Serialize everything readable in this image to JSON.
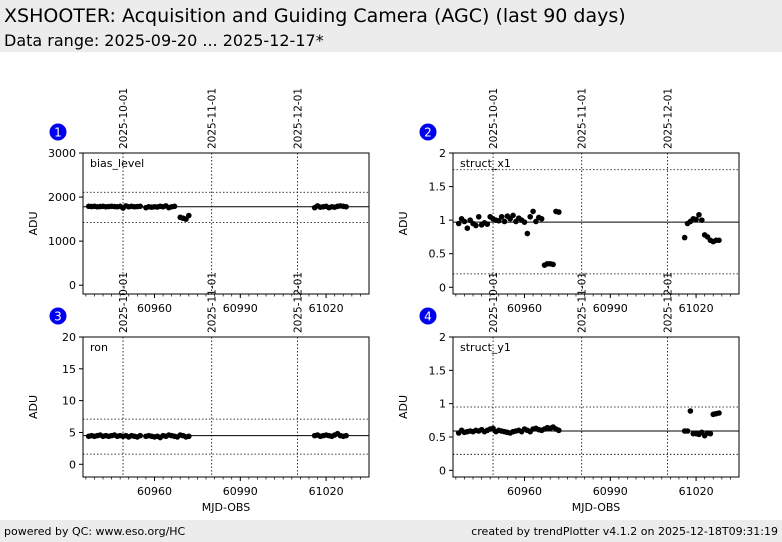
{
  "header": {
    "title": "XSHOOTER: Acquisition and Guiding Camera (AGC) (last 90 days)",
    "subtitle": "Data range: 2025-09-20 ... 2025-12-17*"
  },
  "footer": {
    "left": "powered by QC: www.eso.org/HC",
    "right": "created by trendPlotter v4.1.2 on 2025-12-18T09:31:19"
  },
  "chart_data": [
    {
      "type": "scatter",
      "panel_number": "1",
      "label": "bias_level",
      "ylabel": "ADU",
      "xlabel": "",
      "xlim": [
        60935,
        61035
      ],
      "ylim": [
        -200,
        3000
      ],
      "yticks": [
        0,
        1000,
        2000,
        3000
      ],
      "xticks": [
        60960,
        60990,
        61020
      ],
      "date_ticks": [
        {
          "label": "2025-10-01",
          "x": 60949
        },
        {
          "label": "2025-11-01",
          "x": 60980
        },
        {
          "label": "2025-12-01",
          "x": 61010
        }
      ],
      "reference_line": 1780,
      "limit_lines": [
        2110,
        1420
      ],
      "x": [
        60937,
        60938,
        60939,
        60940,
        60941,
        60942,
        60943,
        60944,
        60945,
        60946,
        60947,
        60948,
        60949,
        60950,
        60951,
        60952,
        60953,
        60954,
        60955,
        60957,
        60958,
        60959,
        60960,
        60961,
        60962,
        60963,
        60964,
        60965,
        60966,
        60967,
        60969,
        60970,
        60971,
        60972,
        61016,
        61017,
        61018,
        61019,
        61020,
        61021,
        61022,
        61023,
        61024,
        61025,
        61026,
        61027
      ],
      "y": [
        1790,
        1785,
        1790,
        1780,
        1785,
        1790,
        1780,
        1785,
        1790,
        1785,
        1780,
        1790,
        1750,
        1800,
        1780,
        1790,
        1780,
        1785,
        1790,
        1760,
        1780,
        1770,
        1780,
        1775,
        1790,
        1780,
        1800,
        1760,
        1780,
        1790,
        1540,
        1520,
        1500,
        1580,
        1760,
        1800,
        1770,
        1780,
        1790,
        1760,
        1780,
        1770,
        1790,
        1800,
        1790,
        1780
      ]
    },
    {
      "type": "scatter",
      "panel_number": "2",
      "label": "struct_x1",
      "ylabel": "ADU",
      "xlabel": "",
      "xlim": [
        60935,
        61035
      ],
      "ylim": [
        -0.1,
        2.0
      ],
      "yticks": [
        0.0,
        0.5,
        1.0,
        1.5,
        2.0
      ],
      "xticks": [
        60960,
        60990,
        61020
      ],
      "date_ticks": [
        {
          "label": "2025-10-01",
          "x": 60949
        },
        {
          "label": "2025-11-01",
          "x": 60980
        },
        {
          "label": "2025-12-01",
          "x": 61010
        }
      ],
      "reference_line": 0.97,
      "limit_lines": [
        1.75,
        0.2
      ],
      "x": [
        60937,
        60938,
        60939,
        60940,
        60941,
        60942,
        60943,
        60944,
        60945,
        60946,
        60947,
        60948,
        60949,
        60950,
        60951,
        60952,
        60953,
        60954,
        60955,
        60956,
        60957,
        60958,
        60959,
        60960,
        60961,
        60962,
        60963,
        60964,
        60965,
        60966,
        60967,
        60968,
        60969,
        60970,
        60971,
        60972,
        61016,
        61017,
        61018,
        61019,
        61020,
        61021,
        61022,
        61023,
        61024,
        61025,
        61026,
        61027,
        61028
      ],
      "y": [
        0.95,
        1.02,
        0.98,
        0.88,
        1.0,
        0.95,
        0.92,
        1.05,
        0.93,
        0.96,
        0.94,
        1.05,
        1.02,
        1.0,
        0.99,
        1.05,
        0.98,
        1.06,
        1.02,
        1.07,
        0.98,
        1.03,
        1.0,
        0.97,
        0.8,
        1.05,
        1.13,
        0.98,
        1.04,
        1.02,
        0.33,
        0.35,
        0.35,
        0.34,
        1.13,
        1.12,
        0.74,
        0.95,
        0.98,
        1.02,
        1.01,
        1.08,
        1.0,
        0.78,
        0.75,
        0.7,
        0.68,
        0.7,
        0.7
      ]
    },
    {
      "type": "scatter",
      "panel_number": "3",
      "label": "ron",
      "ylabel": "ADU",
      "xlabel": "MJD-OBS",
      "xlim": [
        60935,
        61035
      ],
      "ylim": [
        -2,
        20
      ],
      "yticks": [
        0,
        5,
        10,
        15,
        20
      ],
      "xticks": [
        60960,
        60990,
        61020
      ],
      "date_ticks": [
        {
          "label": "2025-10-01",
          "x": 60949
        },
        {
          "label": "2025-11-01",
          "x": 60980
        },
        {
          "label": "2025-12-01",
          "x": 61010
        }
      ],
      "reference_line": 4.5,
      "limit_lines": [
        7.1,
        1.6
      ],
      "x": [
        60937,
        60938,
        60939,
        60940,
        60941,
        60942,
        60943,
        60944,
        60945,
        60946,
        60947,
        60948,
        60949,
        60950,
        60951,
        60952,
        60953,
        60954,
        60955,
        60957,
        60958,
        60959,
        60960,
        60961,
        60962,
        60963,
        60964,
        60965,
        60966,
        60967,
        60968,
        60969,
        60970,
        60971,
        60972,
        61016,
        61017,
        61018,
        61019,
        61020,
        61021,
        61022,
        61023,
        61024,
        61025,
        61026,
        61027
      ],
      "y": [
        4.4,
        4.5,
        4.4,
        4.5,
        4.6,
        4.4,
        4.5,
        4.4,
        4.5,
        4.6,
        4.4,
        4.5,
        4.4,
        4.5,
        4.3,
        4.5,
        4.4,
        4.3,
        4.5,
        4.4,
        4.5,
        4.4,
        4.3,
        4.4,
        4.2,
        4.5,
        4.4,
        4.6,
        4.5,
        4.4,
        4.3,
        4.6,
        4.5,
        4.3,
        4.4,
        4.5,
        4.6,
        4.4,
        4.5,
        4.6,
        4.5,
        4.4,
        4.6,
        4.8,
        4.5,
        4.4,
        4.5
      ]
    },
    {
      "type": "scatter",
      "panel_number": "4",
      "label": "struct_y1",
      "ylabel": "ADU",
      "xlabel": "MJD-OBS",
      "xlim": [
        60935,
        61035
      ],
      "ylim": [
        -0.1,
        2.0
      ],
      "yticks": [
        0.0,
        0.5,
        1.0,
        1.5,
        2.0
      ],
      "xticks": [
        60960,
        60990,
        61020
      ],
      "date_ticks": [
        {
          "label": "2025-10-01",
          "x": 60949
        },
        {
          "label": "2025-11-01",
          "x": 60980
        },
        {
          "label": "2025-12-01",
          "x": 61010
        }
      ],
      "reference_line": 0.59,
      "limit_lines": [
        0.95,
        0.24
      ],
      "x": [
        60937,
        60938,
        60939,
        60940,
        60941,
        60942,
        60943,
        60944,
        60945,
        60946,
        60947,
        60948,
        60949,
        60950,
        60951,
        60952,
        60953,
        60954,
        60955,
        60956,
        60957,
        60958,
        60959,
        60960,
        60961,
        60962,
        60963,
        60964,
        60965,
        60966,
        60967,
        60968,
        60969,
        60970,
        60971,
        60972,
        61016,
        61017,
        61018,
        61019,
        61020,
        61021,
        61022,
        61023,
        61024,
        61025,
        61026,
        61027,
        61028
      ],
      "y": [
        0.56,
        0.6,
        0.57,
        0.58,
        0.59,
        0.58,
        0.6,
        0.59,
        0.61,
        0.58,
        0.6,
        0.62,
        0.63,
        0.58,
        0.6,
        0.59,
        0.58,
        0.57,
        0.56,
        0.58,
        0.59,
        0.6,
        0.58,
        0.62,
        0.6,
        0.58,
        0.62,
        0.63,
        0.61,
        0.6,
        0.62,
        0.64,
        0.63,
        0.65,
        0.62,
        0.6,
        0.59,
        0.59,
        0.89,
        0.55,
        0.55,
        0.54,
        0.57,
        0.52,
        0.56,
        0.55,
        0.84,
        0.85,
        0.86
      ]
    }
  ]
}
